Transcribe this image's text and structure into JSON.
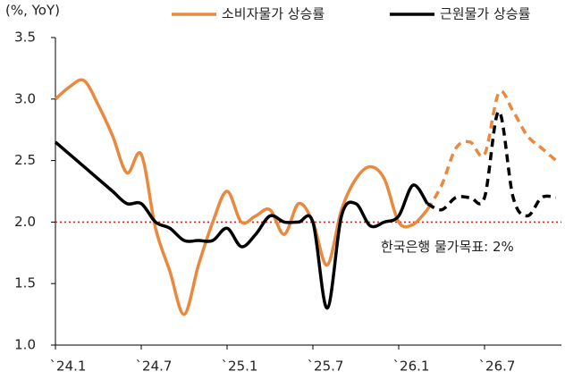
{
  "chart_data": {
    "type": "line",
    "y_unit_label": "(%, YoY)",
    "categories": [
      "`24.1",
      null,
      null,
      null,
      null,
      null,
      "`24.7",
      null,
      null,
      null,
      null,
      null,
      "`25.1",
      null,
      null,
      null,
      null,
      null,
      "`25.7",
      null,
      null,
      null,
      null,
      null,
      "`26.1",
      null,
      null,
      null,
      null,
      null,
      "`26.7",
      null,
      null,
      null,
      null,
      null
    ],
    "series": [
      {
        "name": "소비자물가 상승률",
        "color": "#e8893f",
        "values": [
          3.0,
          3.1,
          3.15,
          2.95,
          2.7,
          2.4,
          2.55,
          1.95,
          1.6,
          1.25,
          1.65,
          2.0,
          2.25,
          2.0,
          2.05,
          2.1,
          1.9,
          2.15,
          2.0,
          1.65,
          2.1,
          2.35,
          2.45,
          2.35,
          2.0,
          1.98,
          2.1,
          2.3,
          2.6,
          2.65,
          2.55,
          3.05,
          2.9,
          2.7,
          2.6,
          2.5
        ]
      },
      {
        "name": "근원물가 상승률",
        "color": "#000000",
        "values": [
          2.65,
          2.55,
          2.45,
          2.35,
          2.25,
          2.15,
          2.15,
          2.0,
          1.95,
          1.85,
          1.85,
          1.85,
          1.95,
          1.8,
          1.9,
          2.05,
          2.0,
          2.0,
          2.0,
          1.3,
          2.05,
          2.15,
          1.97,
          2.0,
          2.05,
          2.3,
          2.15,
          2.1,
          2.2,
          2.2,
          2.2,
          2.9,
          2.2,
          2.05,
          2.2,
          2.2
        ]
      }
    ],
    "dash_from": 26,
    "ylim": [
      1.0,
      3.5
    ],
    "yticks": [
      {
        "value": 1.0,
        "label": "1.0"
      },
      1.5,
      {
        "value": 2.0,
        "label": "2.0"
      },
      2.5,
      {
        "value": 3.0,
        "label": "3.0"
      },
      3.5
    ],
    "reference_line": {
      "value": 2.0,
      "label": "한국은행 물가목표: 2%",
      "color": "#e0201b"
    }
  }
}
